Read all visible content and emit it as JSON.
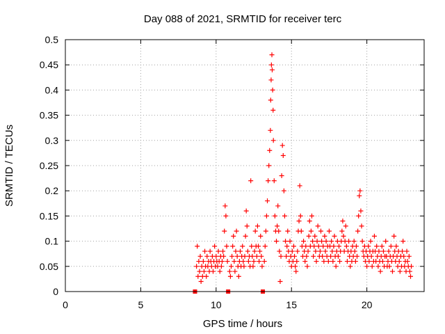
{
  "chart_data": {
    "type": "scatter",
    "title": "Day 088 of 2021, SRMTID for receiver terc",
    "xlabel": "GPS time / hours",
    "ylabel": "SRMTID / TECUs",
    "xlim": [
      0,
      23.8
    ],
    "ylim": [
      0,
      0.5
    ],
    "x_ticks": [
      0,
      5,
      10,
      15,
      20
    ],
    "x_tick_labels": [
      "0",
      "5",
      "10",
      "15",
      "20"
    ],
    "y_ticks": [
      0,
      0.05,
      0.1,
      0.15,
      0.2,
      0.25,
      0.3,
      0.35,
      0.4,
      0.45,
      0.5
    ],
    "y_tick_labels": [
      "0",
      "0.05",
      "0.1",
      "0.15",
      "0.2",
      "0.25",
      "0.3",
      "0.35",
      "0.4",
      "0.45",
      "0.5"
    ],
    "grid": true,
    "marker": "+",
    "series_color": "#ff0000",
    "gap_markers": {
      "description": "filled squares on the x-axis",
      "x": [
        8.6,
        10.8,
        13.1
      ]
    },
    "series": [
      {
        "name": "SRMTID",
        "points": [
          [
            8.7,
            0.05
          ],
          [
            8.75,
            0.09
          ],
          [
            8.8,
            0.03
          ],
          [
            8.85,
            0.06
          ],
          [
            8.9,
            0.04
          ],
          [
            8.95,
            0.07
          ],
          [
            9.0,
            0.02
          ],
          [
            9.05,
            0.05
          ],
          [
            9.1,
            0.03
          ],
          [
            9.15,
            0.06
          ],
          [
            9.2,
            0.04
          ],
          [
            9.25,
            0.08
          ],
          [
            9.3,
            0.05
          ],
          [
            9.35,
            0.03
          ],
          [
            9.4,
            0.07
          ],
          [
            9.45,
            0.05
          ],
          [
            9.5,
            0.06
          ],
          [
            9.55,
            0.04
          ],
          [
            9.6,
            0.08
          ],
          [
            9.65,
            0.06
          ],
          [
            9.7,
            0.05
          ],
          [
            9.75,
            0.07
          ],
          [
            9.8,
            0.04
          ],
          [
            9.85,
            0.06
          ],
          [
            9.9,
            0.09
          ],
          [
            9.95,
            0.05
          ],
          [
            10.0,
            0.07
          ],
          [
            10.05,
            0.06
          ],
          [
            10.1,
            0.05
          ],
          [
            10.15,
            0.08
          ],
          [
            10.2,
            0.06
          ],
          [
            10.25,
            0.04
          ],
          [
            10.3,
            0.07
          ],
          [
            10.35,
            0.05
          ],
          [
            10.4,
            0.06
          ],
          [
            10.45,
            0.08
          ],
          [
            10.5,
            0.07
          ],
          [
            10.55,
            0.12
          ],
          [
            10.6,
            0.17
          ],
          [
            10.65,
            0.15
          ],
          [
            10.7,
            0.09
          ],
          [
            10.75,
            0.06
          ],
          [
            10.9,
            0.04
          ],
          [
            10.95,
            0.03
          ],
          [
            11.0,
            0.05
          ],
          [
            11.05,
            0.07
          ],
          [
            11.1,
            0.09
          ],
          [
            11.15,
            0.11
          ],
          [
            11.2,
            0.06
          ],
          [
            11.25,
            0.04
          ],
          [
            11.3,
            0.08
          ],
          [
            11.35,
            0.12
          ],
          [
            11.4,
            0.07
          ],
          [
            11.45,
            0.05
          ],
          [
            11.5,
            0.03
          ],
          [
            11.55,
            0.06
          ],
          [
            11.6,
            0.08
          ],
          [
            11.65,
            0.05
          ],
          [
            11.7,
            0.07
          ],
          [
            11.75,
            0.09
          ],
          [
            11.8,
            0.06
          ],
          [
            11.85,
            0.05
          ],
          [
            11.9,
            0.07
          ],
          [
            11.95,
            0.11
          ],
          [
            12.0,
            0.16
          ],
          [
            12.05,
            0.13
          ],
          [
            12.1,
            0.08
          ],
          [
            12.15,
            0.06
          ],
          [
            12.2,
            0.07
          ],
          [
            12.25,
            0.05
          ],
          [
            12.3,
            0.22
          ],
          [
            12.35,
            0.09
          ],
          [
            12.4,
            0.07
          ],
          [
            12.45,
            0.05
          ],
          [
            12.5,
            0.06
          ],
          [
            12.55,
            0.08
          ],
          [
            12.6,
            0.12
          ],
          [
            12.65,
            0.09
          ],
          [
            12.7,
            0.07
          ],
          [
            12.75,
            0.13
          ],
          [
            12.8,
            0.09
          ],
          [
            12.85,
            0.06
          ],
          [
            12.9,
            0.08
          ],
          [
            12.95,
            0.11
          ],
          [
            13.0,
            0.07
          ],
          [
            13.05,
            0.05
          ],
          [
            13.2,
            0.06
          ],
          [
            13.25,
            0.09
          ],
          [
            13.3,
            0.12
          ],
          [
            13.35,
            0.15
          ],
          [
            13.4,
            0.18
          ],
          [
            13.45,
            0.22
          ],
          [
            13.5,
            0.25
          ],
          [
            13.55,
            0.28
          ],
          [
            13.6,
            0.32
          ],
          [
            13.62,
            0.38
          ],
          [
            13.65,
            0.42
          ],
          [
            13.67,
            0.45
          ],
          [
            13.7,
            0.47
          ],
          [
            13.72,
            0.44
          ],
          [
            13.75,
            0.4
          ],
          [
            13.78,
            0.36
          ],
          [
            13.8,
            0.3
          ],
          [
            13.85,
            0.22
          ],
          [
            13.9,
            0.15
          ],
          [
            13.95,
            0.12
          ],
          [
            14.0,
            0.1
          ],
          [
            14.05,
            0.13
          ],
          [
            14.1,
            0.17
          ],
          [
            14.15,
            0.12
          ],
          [
            14.2,
            0.08
          ],
          [
            14.25,
            0.02
          ],
          [
            14.3,
            0.07
          ],
          [
            14.35,
            0.23
          ],
          [
            14.4,
            0.29
          ],
          [
            14.45,
            0.27
          ],
          [
            14.5,
            0.2
          ],
          [
            14.55,
            0.15
          ],
          [
            14.6,
            0.1
          ],
          [
            14.65,
            0.07
          ],
          [
            14.7,
            0.09
          ],
          [
            14.75,
            0.12
          ],
          [
            14.8,
            0.08
          ],
          [
            14.85,
            0.06
          ],
          [
            14.9,
            0.1
          ],
          [
            14.95,
            0.07
          ],
          [
            15.0,
            0.05
          ],
          [
            15.05,
            0.08
          ],
          [
            15.1,
            0.06
          ],
          [
            15.15,
            0.09
          ],
          [
            15.2,
            0.07
          ],
          [
            15.25,
            0.05
          ],
          [
            15.3,
            0.04
          ],
          [
            15.35,
            0.06
          ],
          [
            15.4,
            0.08
          ],
          [
            15.45,
            0.12
          ],
          [
            15.5,
            0.14
          ],
          [
            15.55,
            0.21
          ],
          [
            15.6,
            0.15
          ],
          [
            15.65,
            0.12
          ],
          [
            15.7,
            0.09
          ],
          [
            15.75,
            0.07
          ],
          [
            15.8,
            0.1
          ],
          [
            15.85,
            0.08
          ],
          [
            15.9,
            0.06
          ],
          [
            15.95,
            0.09
          ],
          [
            16.0,
            0.07
          ],
          [
            16.05,
            0.05
          ],
          [
            16.1,
            0.08
          ],
          [
            16.15,
            0.11
          ],
          [
            16.2,
            0.14
          ],
          [
            16.25,
            0.09
          ],
          [
            16.3,
            0.12
          ],
          [
            16.35,
            0.15
          ],
          [
            16.4,
            0.1
          ],
          [
            16.45,
            0.07
          ],
          [
            16.5,
            0.09
          ],
          [
            16.55,
            0.11
          ],
          [
            16.6,
            0.08
          ],
          [
            16.65,
            0.06
          ],
          [
            16.7,
            0.1
          ],
          [
            16.75,
            0.13
          ],
          [
            16.8,
            0.09
          ],
          [
            16.85,
            0.07
          ],
          [
            16.9,
            0.08
          ],
          [
            16.95,
            0.12
          ],
          [
            17.0,
            0.1
          ],
          [
            17.05,
            0.07
          ],
          [
            17.1,
            0.09
          ],
          [
            17.15,
            0.06
          ],
          [
            17.2,
            0.11
          ],
          [
            17.25,
            0.08
          ],
          [
            17.3,
            0.1
          ],
          [
            17.35,
            0.07
          ],
          [
            17.4,
            0.09
          ],
          [
            17.45,
            0.06
          ],
          [
            17.5,
            0.12
          ],
          [
            17.55,
            0.09
          ],
          [
            17.6,
            0.07
          ],
          [
            17.65,
            0.1
          ],
          [
            17.7,
            0.08
          ],
          [
            17.75,
            0.06
          ],
          [
            17.8,
            0.09
          ],
          [
            17.85,
            0.11
          ],
          [
            17.9,
            0.07
          ],
          [
            17.95,
            0.05
          ],
          [
            18.0,
            0.08
          ],
          [
            18.05,
            0.1
          ],
          [
            18.1,
            0.07
          ],
          [
            18.15,
            0.09
          ],
          [
            18.2,
            0.06
          ],
          [
            18.25,
            0.08
          ],
          [
            18.3,
            0.1
          ],
          [
            18.35,
            0.12
          ],
          [
            18.4,
            0.14
          ],
          [
            18.45,
            0.11
          ],
          [
            18.5,
            0.08
          ],
          [
            18.55,
            0.1
          ],
          [
            18.6,
            0.13
          ],
          [
            18.65,
            0.09
          ],
          [
            18.7,
            0.06
          ],
          [
            18.75,
            0.08
          ],
          [
            18.8,
            0.1
          ],
          [
            18.85,
            0.07
          ],
          [
            18.9,
            0.05
          ],
          [
            18.95,
            0.08
          ],
          [
            19.0,
            0.06
          ],
          [
            19.05,
            0.09
          ],
          [
            19.1,
            0.07
          ],
          [
            19.15,
            0.1
          ],
          [
            19.2,
            0.08
          ],
          [
            19.25,
            0.06
          ],
          [
            19.3,
            0.09
          ],
          [
            19.35,
            0.07
          ],
          [
            19.4,
            0.12
          ],
          [
            19.45,
            0.15
          ],
          [
            19.5,
            0.19
          ],
          [
            19.55,
            0.2
          ],
          [
            19.6,
            0.16
          ],
          [
            19.65,
            0.13
          ],
          [
            19.7,
            0.1
          ],
          [
            19.75,
            0.08
          ],
          [
            19.8,
            0.07
          ],
          [
            19.85,
            0.09
          ],
          [
            19.9,
            0.06
          ],
          [
            19.95,
            0.08
          ],
          [
            20.0,
            0.05
          ],
          [
            20.05,
            0.07
          ],
          [
            20.1,
            0.09
          ],
          [
            20.15,
            0.06
          ],
          [
            20.2,
            0.08
          ],
          [
            20.25,
            0.1
          ],
          [
            20.3,
            0.07
          ],
          [
            20.35,
            0.05
          ],
          [
            20.4,
            0.08
          ],
          [
            20.45,
            0.06
          ],
          [
            20.5,
            0.11
          ],
          [
            20.55,
            0.08
          ],
          [
            20.6,
            0.06
          ],
          [
            20.65,
            0.09
          ],
          [
            20.7,
            0.07
          ],
          [
            20.75,
            0.05
          ],
          [
            20.8,
            0.08
          ],
          [
            20.85,
            0.06
          ],
          [
            20.9,
            0.04
          ],
          [
            20.95,
            0.07
          ],
          [
            21.0,
            0.09
          ],
          [
            21.05,
            0.06
          ],
          [
            21.1,
            0.08
          ],
          [
            21.15,
            0.05
          ],
          [
            21.2,
            0.07
          ],
          [
            21.25,
            0.1
          ],
          [
            21.3,
            0.07
          ],
          [
            21.35,
            0.05
          ],
          [
            21.4,
            0.06
          ],
          [
            21.45,
            0.08
          ],
          [
            21.5,
            0.05
          ],
          [
            21.55,
            0.07
          ],
          [
            21.6,
            0.09
          ],
          [
            21.65,
            0.06
          ],
          [
            21.7,
            0.04
          ],
          [
            21.75,
            0.07
          ],
          [
            21.8,
            0.11
          ],
          [
            21.85,
            0.08
          ],
          [
            21.9,
            0.06
          ],
          [
            21.95,
            0.09
          ],
          [
            22.0,
            0.07
          ],
          [
            22.05,
            0.05
          ],
          [
            22.1,
            0.08
          ],
          [
            22.15,
            0.06
          ],
          [
            22.2,
            0.04
          ],
          [
            22.25,
            0.07
          ],
          [
            22.3,
            0.05
          ],
          [
            22.35,
            0.08
          ],
          [
            22.4,
            0.1
          ],
          [
            22.45,
            0.07
          ],
          [
            22.5,
            0.05
          ],
          [
            22.55,
            0.06
          ],
          [
            22.6,
            0.04
          ],
          [
            22.65,
            0.08
          ],
          [
            22.7,
            0.06
          ],
          [
            22.75,
            0.05
          ],
          [
            22.8,
            0.07
          ],
          [
            22.85,
            0.04
          ],
          [
            22.9,
            0.03
          ],
          [
            22.95,
            0.05
          ]
        ]
      }
    ]
  }
}
